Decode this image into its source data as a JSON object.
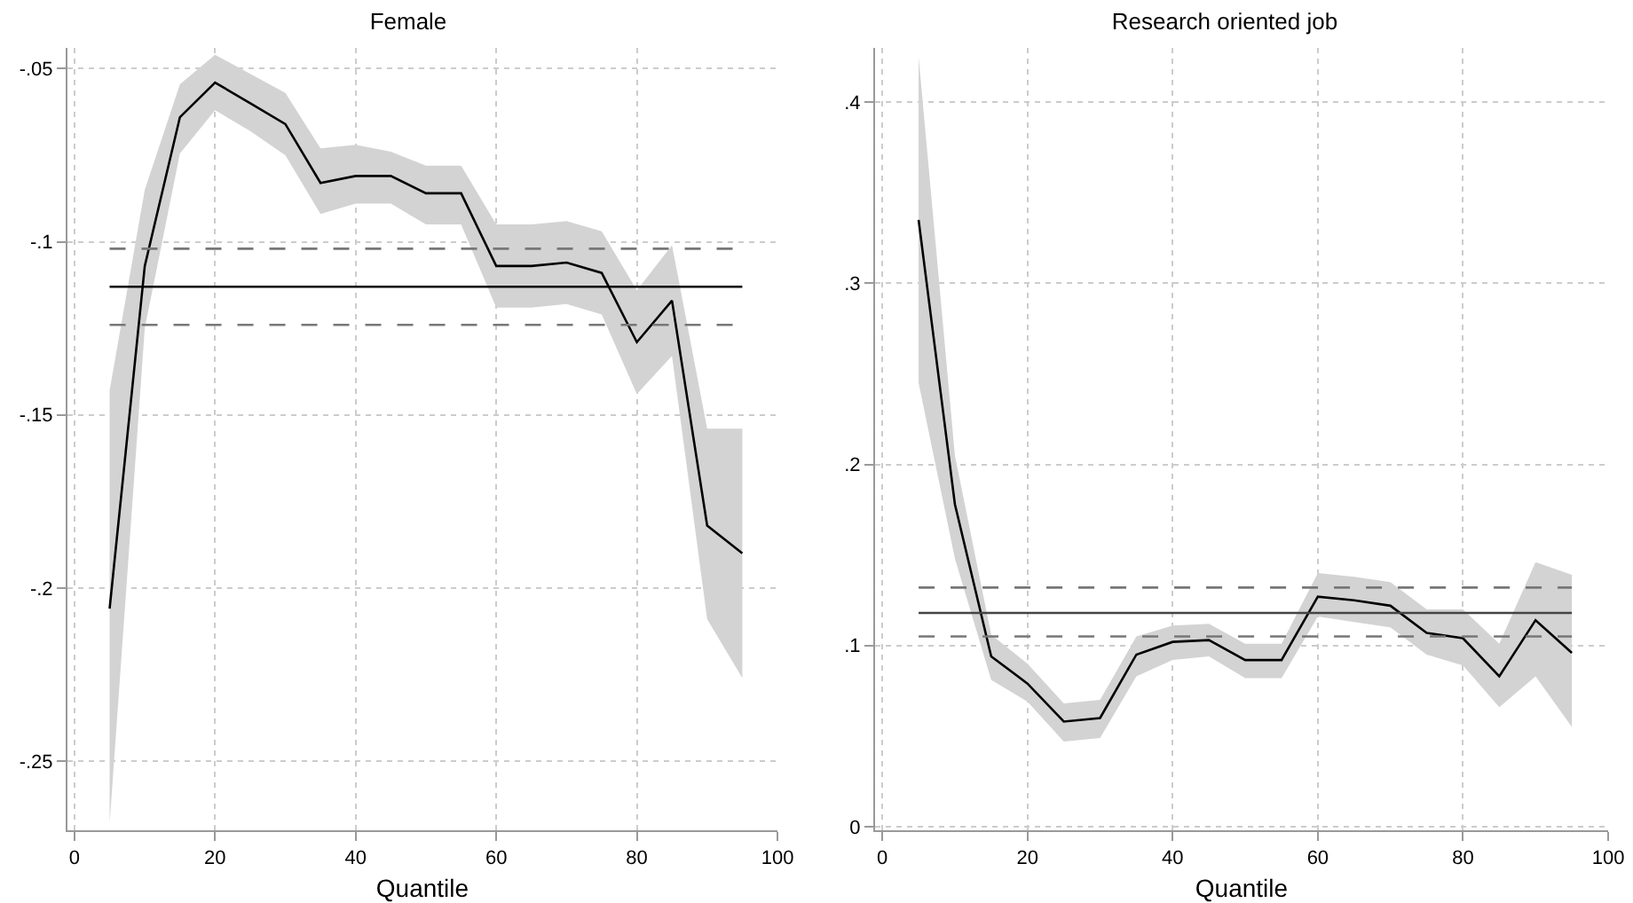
{
  "chart_data": [
    {
      "type": "line",
      "title": "Female",
      "xlabel": "Quantile",
      "x": [
        5,
        10,
        15,
        20,
        25,
        30,
        35,
        40,
        45,
        50,
        55,
        60,
        65,
        70,
        75,
        80,
        85,
        90,
        95
      ],
      "series": [
        {
          "color": "#000000",
          "values": [
            -0.206,
            -0.107,
            -0.064,
            -0.054,
            -0.06,
            -0.066,
            -0.083,
            -0.081,
            -0.081,
            -0.086,
            -0.086,
            -0.107,
            -0.107,
            -0.106,
            -0.109,
            -0.129,
            -0.117,
            -0.182,
            -0.19
          ],
          "lower": [
            -0.268,
            -0.125,
            -0.0745,
            -0.062,
            -0.068,
            -0.075,
            -0.092,
            -0.089,
            -0.089,
            -0.095,
            -0.095,
            -0.119,
            -0.119,
            -0.118,
            -0.121,
            -0.144,
            -0.133,
            -0.209,
            -0.226
          ],
          "upper": [
            -0.143,
            -0.085,
            -0.0545,
            -0.046,
            -0.0515,
            -0.057,
            -0.073,
            -0.072,
            -0.074,
            -0.078,
            -0.078,
            -0.095,
            -0.095,
            -0.094,
            -0.097,
            -0.114,
            -0.101,
            -0.154,
            -0.154
          ]
        }
      ],
      "ref_lines": [
        {
          "axis": "y",
          "value": -0.113,
          "color": "#000000",
          "line_style": "solid"
        },
        {
          "axis": "y",
          "value": -0.102,
          "color": "#777777",
          "line_style": "dashed"
        },
        {
          "axis": "y",
          "value": -0.124,
          "color": "#777777",
          "line_style": "dashed"
        }
      ],
      "xlim": [
        -1,
        100
      ],
      "xticks": [
        0,
        20,
        40,
        60,
        80,
        100
      ],
      "ylim": [
        -0.27,
        -0.044
      ],
      "yticks": [
        {
          "value": -0.05,
          "label": "-.05"
        },
        {
          "value": -0.1,
          "label": "-.1"
        },
        {
          "value": -0.15,
          "label": "-.15"
        },
        {
          "value": -0.2,
          "label": "-.2"
        },
        {
          "value": -0.25,
          "label": "-.25"
        }
      ],
      "grid": true
    },
    {
      "type": "line",
      "title": "Research oriented job",
      "xlabel": "Quantile",
      "x": [
        5,
        10,
        15,
        20,
        25,
        30,
        35,
        40,
        45,
        50,
        55,
        60,
        65,
        70,
        75,
        80,
        85,
        90,
        95
      ],
      "series": [
        {
          "color": "#000000",
          "values": [
            0.335,
            0.178,
            0.094,
            0.079,
            0.058,
            0.06,
            0.095,
            0.102,
            0.103,
            0.092,
            0.092,
            0.127,
            0.125,
            0.122,
            0.107,
            0.104,
            0.083,
            0.114,
            0.096
          ],
          "lower": [
            0.245,
            0.148,
            0.081,
            0.069,
            0.047,
            0.049,
            0.083,
            0.092,
            0.094,
            0.082,
            0.082,
            0.116,
            0.113,
            0.11,
            0.095,
            0.089,
            0.066,
            0.083,
            0.055
          ],
          "upper": [
            0.425,
            0.205,
            0.106,
            0.09,
            0.068,
            0.07,
            0.105,
            0.111,
            0.112,
            0.101,
            0.101,
            0.14,
            0.138,
            0.135,
            0.12,
            0.12,
            0.101,
            0.146,
            0.139
          ]
        }
      ],
      "ref_lines": [
        {
          "axis": "y",
          "value": 0.118,
          "color": "#444444",
          "line_style": "solid"
        },
        {
          "axis": "y",
          "value": 0.132,
          "color": "#777777",
          "line_style": "dashed"
        },
        {
          "axis": "y",
          "value": 0.105,
          "color": "#777777",
          "line_style": "dashed"
        }
      ],
      "xlim": [
        -1,
        100
      ],
      "xticks": [
        0,
        20,
        40,
        60,
        80,
        100
      ],
      "ylim": [
        -0.002,
        0.43
      ],
      "yticks": [
        {
          "value": 0,
          "label": "0"
        },
        {
          "value": 0.1,
          "label": ".1"
        },
        {
          "value": 0.2,
          "label": ".2"
        },
        {
          "value": 0.3,
          "label": ".3"
        },
        {
          "value": 0.4,
          "label": ".4"
        }
      ],
      "grid": true
    }
  ]
}
